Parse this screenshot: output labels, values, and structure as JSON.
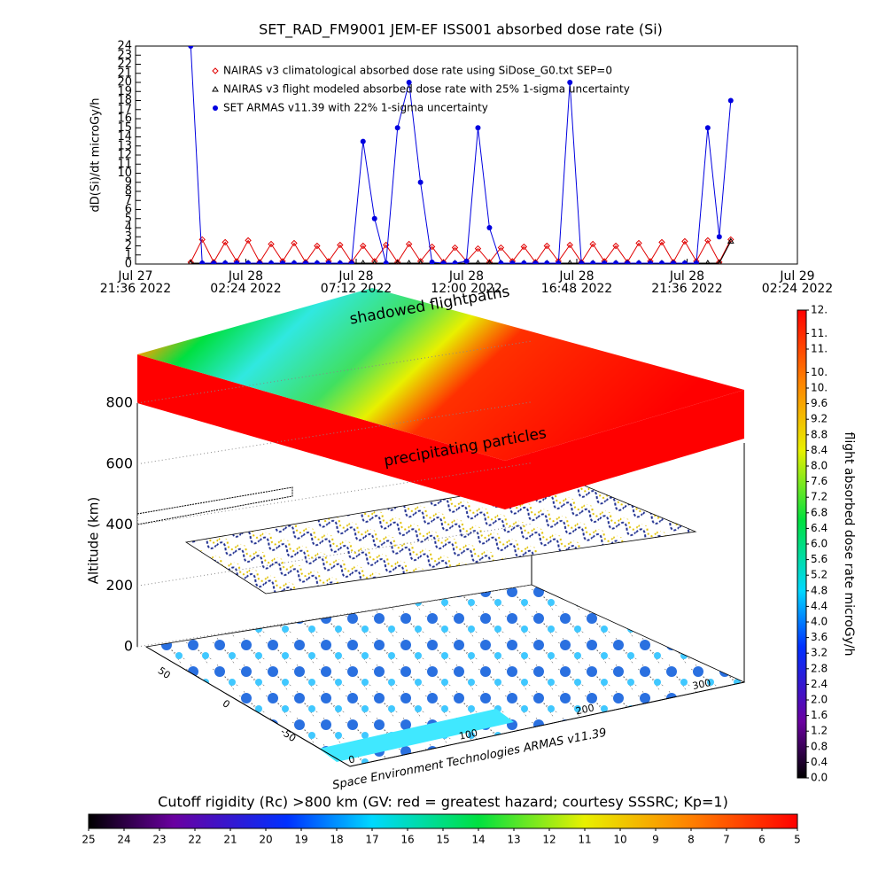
{
  "chart_data": [
    {
      "type": "line",
      "title": "SET_RAD_FM9001  JEM-EF ISS001 absorbed dose rate (Si)",
      "y_label": "dD(Si)/dt microGy/h",
      "xlim": [
        "2022-07-27T21:36",
        "2022-07-29T02:24"
      ],
      "xticks": [
        {
          "value": "2022-07-27T21:36",
          "label": [
            "Jul 27",
            "21:36 2022"
          ]
        },
        {
          "value": "2022-07-28T02:24",
          "label": [
            "Jul 28",
            "02:24 2022"
          ]
        },
        {
          "value": "2022-07-28T07:12",
          "label": [
            "Jul 28",
            "07:12 2022"
          ]
        },
        {
          "value": "2022-07-28T12:00",
          "label": [
            "Jul 28",
            "12:00 2022"
          ]
        },
        {
          "value": "2022-07-28T16:48",
          "label": [
            "Jul 28",
            "16:48 2022"
          ]
        },
        {
          "value": "2022-07-28T21:36",
          "label": [
            "Jul 28",
            "21:36 2022"
          ]
        },
        {
          "value": "2022-07-29T02:24",
          "label": [
            "Jul 29",
            "02:24 2022"
          ]
        }
      ],
      "ylim": [
        0,
        24
      ],
      "yticks": [
        0,
        1,
        2,
        3,
        4,
        5,
        6,
        7,
        8,
        9,
        10,
        11,
        12,
        13,
        14,
        15,
        16,
        17,
        18,
        19,
        20,
        21,
        22,
        23,
        24
      ],
      "x": [
        "2022-07-28T00:00",
        "2022-07-28T00:30",
        "2022-07-28T01:00",
        "2022-07-28T01:30",
        "2022-07-28T02:00",
        "2022-07-28T02:30",
        "2022-07-28T03:00",
        "2022-07-28T03:30",
        "2022-07-28T04:00",
        "2022-07-28T04:30",
        "2022-07-28T05:00",
        "2022-07-28T05:30",
        "2022-07-28T06:00",
        "2022-07-28T06:30",
        "2022-07-28T07:00",
        "2022-07-28T07:30",
        "2022-07-28T08:00",
        "2022-07-28T08:30",
        "2022-07-28T09:00",
        "2022-07-28T09:30",
        "2022-07-28T10:00",
        "2022-07-28T10:30",
        "2022-07-28T11:00",
        "2022-07-28T11:30",
        "2022-07-28T12:00",
        "2022-07-28T12:30",
        "2022-07-28T13:00",
        "2022-07-28T13:30",
        "2022-07-28T14:00",
        "2022-07-28T14:30",
        "2022-07-28T15:00",
        "2022-07-28T15:30",
        "2022-07-28T16:00",
        "2022-07-28T16:30",
        "2022-07-28T17:00",
        "2022-07-28T17:30",
        "2022-07-28T18:00",
        "2022-07-28T18:30",
        "2022-07-28T19:00",
        "2022-07-28T19:30",
        "2022-07-28T20:00",
        "2022-07-28T20:30",
        "2022-07-28T21:00",
        "2022-07-28T21:30",
        "2022-07-28T22:00",
        "2022-07-28T22:30",
        "2022-07-28T23:00",
        "2022-07-28T23:30"
      ],
      "series": [
        {
          "name": "NAIRAS v3 climatological absorbed dose rate using SiDose_G0.txt SEP=0",
          "color": "#e00000",
          "marker": "diamond",
          "values": [
            0.2,
            2.7,
            0.2,
            2.4,
            0.3,
            2.6,
            0.2,
            2.2,
            0.3,
            2.3,
            0.2,
            2.0,
            0.3,
            2.1,
            0.2,
            2.0,
            0.3,
            2.1,
            0.2,
            2.2,
            0.3,
            1.9,
            0.2,
            1.8,
            0.3,
            1.7,
            0.2,
            1.8,
            0.3,
            1.9,
            0.2,
            2.0,
            0.3,
            2.1,
            0.2,
            2.2,
            0.3,
            2.0,
            0.2,
            2.3,
            0.3,
            2.4,
            0.2,
            2.5,
            0.3,
            2.6,
            0.2,
            2.7
          ]
        },
        {
          "name": "NAIRAS v3 flight modeled absorbed dose rate with 25% 1-sigma uncertainty",
          "color": "#000000",
          "marker": "triangle",
          "values": [
            0.1,
            0.1,
            0.1,
            0.1,
            0.1,
            0.1,
            0.1,
            0.1,
            0.1,
            0.1,
            0.1,
            0.1,
            0.1,
            0.1,
            0.1,
            0.1,
            0.1,
            0.1,
            0.1,
            0.1,
            0.1,
            0.1,
            0.1,
            0.1,
            0.1,
            0.1,
            0.1,
            0.1,
            0.1,
            0.1,
            0.1,
            0.1,
            0.1,
            0.1,
            0.1,
            0.1,
            0.1,
            0.1,
            0.1,
            0.1,
            0.1,
            0.1,
            0.1,
            0.1,
            0.1,
            0.1,
            0.1,
            2.5
          ]
        },
        {
          "name": "SET ARMAS v11.39 with 22% 1-sigma uncertainty",
          "color": "#0000e0",
          "marker": "circle",
          "values": [
            24,
            0.1,
            0.1,
            0.1,
            0.1,
            0.1,
            0.1,
            0.1,
            0.1,
            0.1,
            0.1,
            0.1,
            0.1,
            0.1,
            0.1,
            13.5,
            5,
            0.1,
            15,
            20,
            9,
            0.2,
            0.1,
            0.1,
            0.3,
            15,
            4,
            0.1,
            0.1,
            0.1,
            0.1,
            0.1,
            0.1,
            20,
            0.1,
            0.1,
            0.1,
            0.1,
            0.1,
            0.1,
            0.1,
            0.1,
            0.1,
            0.1,
            0.1,
            15,
            3,
            18
          ]
        }
      ]
    },
    {
      "type": "colorbar",
      "orientation": "vertical",
      "label": "flight absorbed dose rate microGy/h",
      "lim": [
        0,
        12
      ],
      "ticks": [
        {
          "value": 0,
          "label": "0.0"
        },
        0.4,
        0.8,
        1.2,
        1.6,
        {
          "value": 2,
          "label": "2.0"
        },
        2.4,
        2.8,
        3.2,
        3.6,
        {
          "value": 4,
          "label": "4.0"
        },
        4.4,
        4.8,
        5.2,
        5.6,
        {
          "value": 6,
          "label": "6.0"
        },
        6.4,
        6.8,
        7.2,
        7.6,
        {
          "value": 8,
          "label": "8.0"
        },
        8.4,
        8.8,
        9.2,
        9.6,
        {
          "value": 10,
          "label": "10."
        },
        {
          "value": 10.4,
          "label": "10."
        },
        {
          "value": 11,
          "label": "11."
        },
        {
          "value": 11.4,
          "label": "11."
        },
        {
          "value": 12,
          "label": "12."
        }
      ]
    },
    {
      "type": "colorbar",
      "orientation": "horizontal",
      "label": "Cutoff rigidity (Rc) >800 km (GV: red = greatest hazard; courtesy SSSRC; Kp=1)",
      "lim": [
        25,
        5
      ],
      "ticks": [
        25,
        24,
        23,
        22,
        21,
        20,
        19,
        18,
        17,
        16,
        15,
        14,
        13,
        12,
        11,
        10,
        9,
        8,
        7,
        6,
        5
      ]
    },
    {
      "type": "surface3d",
      "z_label": "Altitude (km)",
      "zlim": [
        0,
        800
      ],
      "zticks": [
        0,
        200,
        400,
        600,
        800
      ],
      "lat_ticks": [
        50,
        0,
        -50
      ],
      "lon_ticks": [
        0,
        100,
        200,
        300
      ],
      "annotations": [
        "shadowed flightpaths",
        "precipitating particles"
      ],
      "credit": "Space Environment Technologies ARMAS v11.39"
    }
  ]
}
